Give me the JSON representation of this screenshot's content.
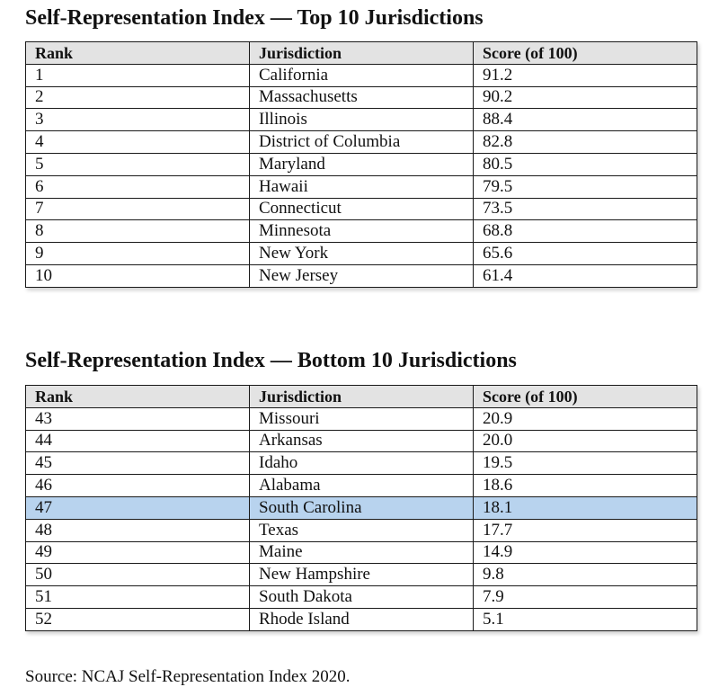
{
  "top": {
    "title": "Self-Representation Index — Top 10 Jurisdictions",
    "headers": [
      "Rank",
      "Jurisdiction",
      "Score (of 100)"
    ],
    "rows": [
      {
        "rank": "1",
        "jurisdiction": "California",
        "score": "91.2"
      },
      {
        "rank": "2",
        "jurisdiction": "Massachusetts",
        "score": "90.2"
      },
      {
        "rank": "3",
        "jurisdiction": "Illinois",
        "score": "88.4"
      },
      {
        "rank": "4",
        "jurisdiction": "District of Columbia",
        "score": "82.8"
      },
      {
        "rank": "5",
        "jurisdiction": "Maryland",
        "score": "80.5"
      },
      {
        "rank": "6",
        "jurisdiction": "Hawaii",
        "score": "79.5"
      },
      {
        "rank": "7",
        "jurisdiction": "Connecticut",
        "score": "73.5"
      },
      {
        "rank": "8",
        "jurisdiction": "Minnesota",
        "score": "68.8"
      },
      {
        "rank": "9",
        "jurisdiction": "New York",
        "score": "65.6"
      },
      {
        "rank": "10",
        "jurisdiction": "New Jersey",
        "score": "61.4"
      }
    ]
  },
  "bottom": {
    "title": "Self-Representation Index — Bottom 10 Jurisdictions",
    "headers": [
      "Rank",
      "Jurisdiction",
      "Score (of 100)"
    ],
    "highlighted_rank": "47",
    "highlight_color": "#b8d3ee",
    "rows": [
      {
        "rank": "43",
        "jurisdiction": "Missouri",
        "score": "20.9"
      },
      {
        "rank": "44",
        "jurisdiction": "Arkansas",
        "score": "20.0"
      },
      {
        "rank": "45",
        "jurisdiction": "Idaho",
        "score": "19.5"
      },
      {
        "rank": "46",
        "jurisdiction": "Alabama",
        "score": "18.6"
      },
      {
        "rank": "47",
        "jurisdiction": "South Carolina",
        "score": "18.1"
      },
      {
        "rank": "48",
        "jurisdiction": "Texas",
        "score": "17.7"
      },
      {
        "rank": "49",
        "jurisdiction": "Maine",
        "score": "14.9"
      },
      {
        "rank": "50",
        "jurisdiction": "New Hampshire",
        "score": "9.8"
      },
      {
        "rank": "51",
        "jurisdiction": "South Dakota",
        "score": "7.9"
      },
      {
        "rank": "52",
        "jurisdiction": "Rhode Island",
        "score": "5.1"
      }
    ]
  },
  "source": "Source: NCAJ Self-Representation Index 2020."
}
